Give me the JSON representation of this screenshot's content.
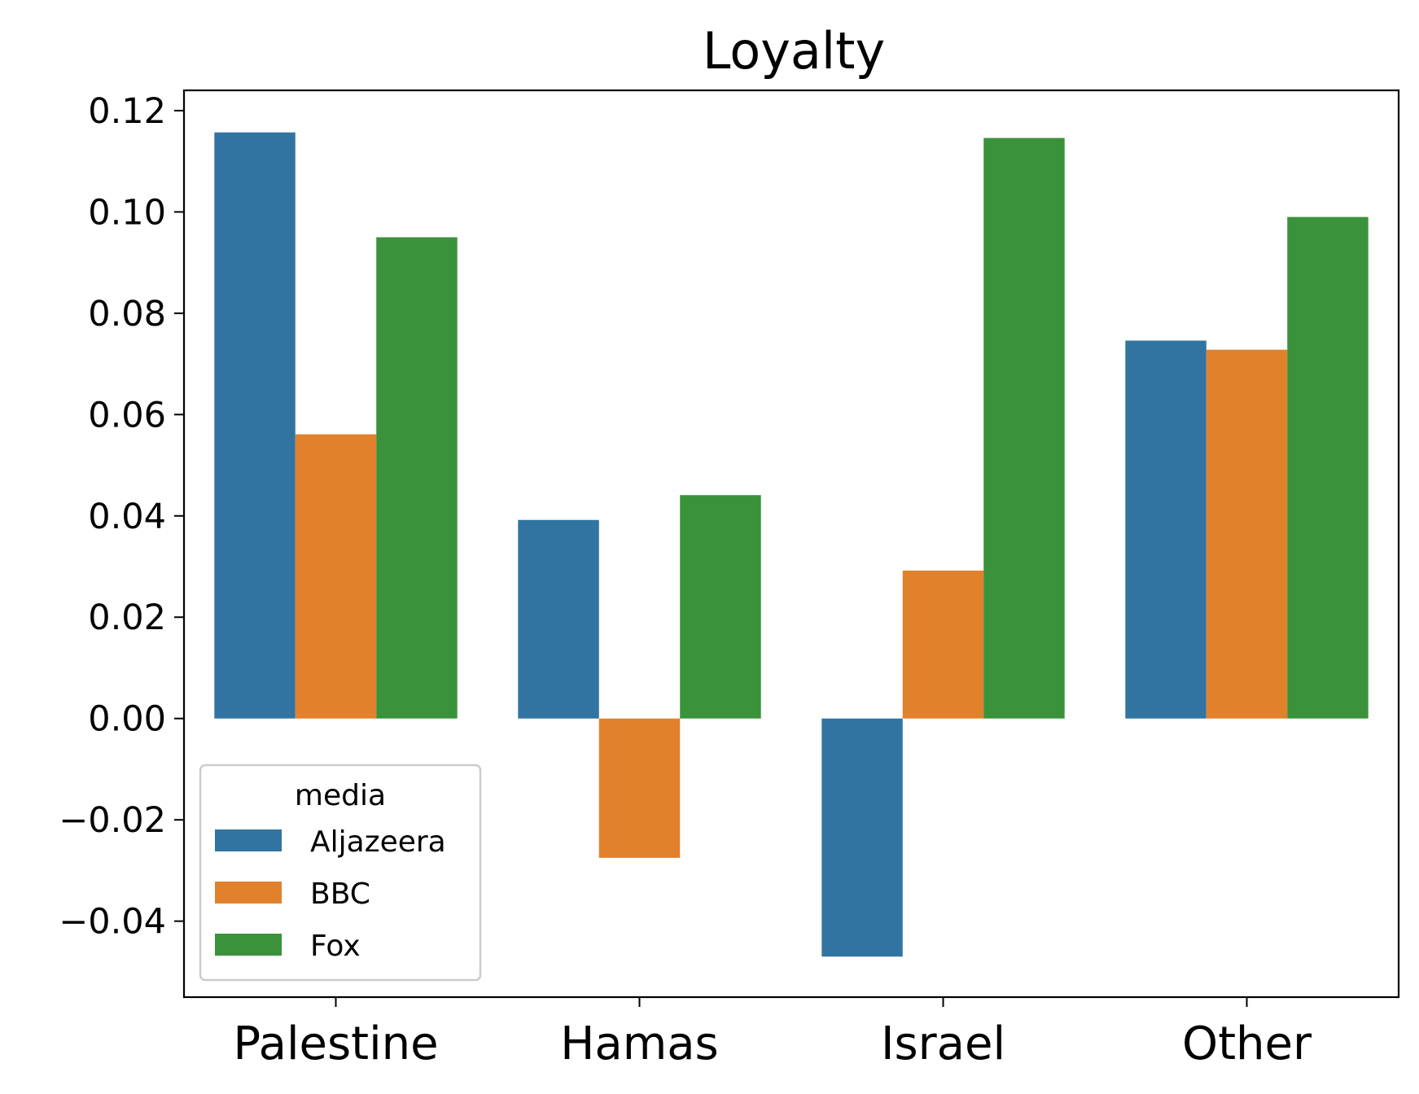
{
  "chart_data": {
    "type": "bar",
    "title": "Loyalty",
    "xlabel": "",
    "ylabel": "",
    "categories": [
      "Palestine",
      "Hamas",
      "Israel",
      "Other"
    ],
    "series": [
      {
        "name": "Aljazeera",
        "color": "#3274a1",
        "values": [
          0.1157,
          0.0392,
          -0.047,
          0.0746
        ]
      },
      {
        "name": "BBC",
        "color": "#e1812c",
        "values": [
          0.0561,
          -0.0275,
          0.0292,
          0.0728
        ]
      },
      {
        "name": "Fox",
        "color": "#3a923a",
        "values": [
          0.095,
          0.0441,
          0.1146,
          0.099
        ]
      }
    ],
    "ylim": [
      -0.055,
      0.124
    ],
    "yticks": [
      -0.04,
      -0.02,
      0.0,
      0.02,
      0.04,
      0.06,
      0.08,
      0.1,
      0.12
    ],
    "ytick_labels": [
      "−0.04",
      "−0.02",
      "0.00",
      "0.02",
      "0.04",
      "0.06",
      "0.08",
      "0.10",
      "0.12"
    ],
    "grid": false,
    "legend": {
      "title": "media",
      "placement": "lower-left"
    }
  }
}
